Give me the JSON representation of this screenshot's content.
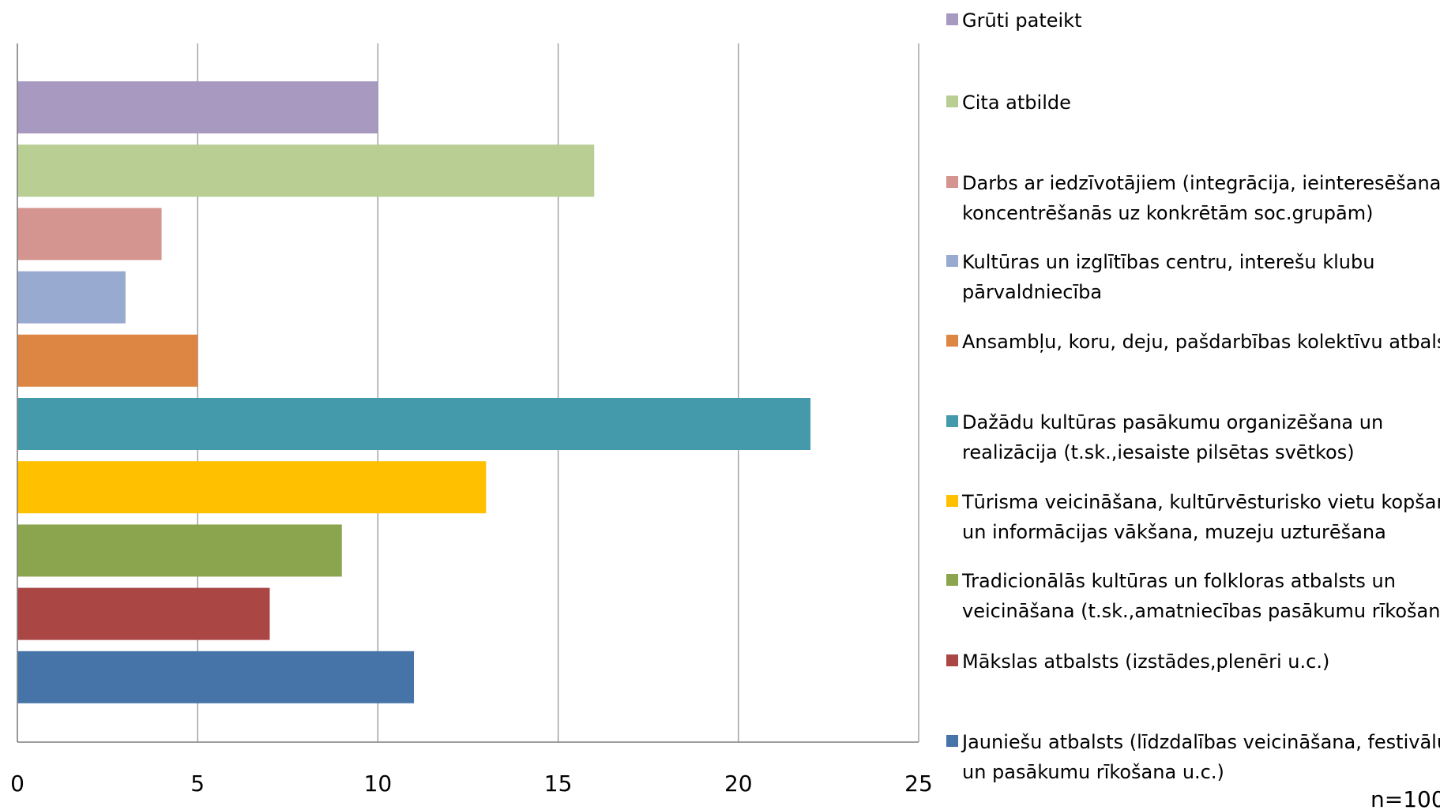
{
  "chart_data": {
    "type": "bar",
    "orientation": "horizontal",
    "xlim": [
      0,
      25
    ],
    "x_ticks": [
      "0",
      "5",
      "10",
      "15",
      "20",
      "25"
    ],
    "grid": "vertical",
    "legend_position": "right",
    "note": "n=100",
    "categories": [
      {
        "lines": [
          "Grūti pateikt"
        ],
        "value": 10,
        "color": "#A899C1"
      },
      {
        "lines": [
          "Cita atbilde"
        ],
        "value": 16,
        "color": "#B8CE93"
      },
      {
        "lines": [
          "Darbs ar iedzīvotājiem (integrācija, ieinteresēšana,",
          "koncentrēšanās uz konkrētām soc.grupām)"
        ],
        "value": 4,
        "color": "#D49490"
      },
      {
        "lines": [
          "Kultūras un izglītības centru, interešu klubu",
          "pārvaldniecība"
        ],
        "value": 3,
        "color": "#98AAD0"
      },
      {
        "lines": [
          "Ansambļu, koru, deju, pašdarbības kolektīvu atbalsts"
        ],
        "value": 5,
        "color": "#DD8542"
      },
      {
        "lines": [
          "Dažādu kultūras pasākumu organizēšana un",
          "realizācija (t.sk.,iesaiste pilsētas svētkos)"
        ],
        "value": 22,
        "color": "#4499AA"
      },
      {
        "lines": [
          "Tūrisma veicināšana, kultūrvēsturisko vietu kopšana",
          "un informācijas vākšana, muzeju uzturēšana"
        ],
        "value": 13,
        "color": "#FFC000"
      },
      {
        "lines": [
          "Tradicionālās kultūras un folkloras atbalsts un",
          "veicināšana (t.sk.,amatniecības pasākumu rīkošana)"
        ],
        "value": 9,
        "color": "#8BA54E"
      },
      {
        "lines": [
          "Mākslas atbalsts (izstādes,plenēri u.c.)"
        ],
        "value": 7,
        "color": "#AA4644"
      },
      {
        "lines": [
          "Jauniešu atbalsts (līdzdalības veicināšana, festivālu",
          "un pasākumu rīkošana u.c.)"
        ],
        "value": 11,
        "color": "#4673A8"
      }
    ]
  }
}
